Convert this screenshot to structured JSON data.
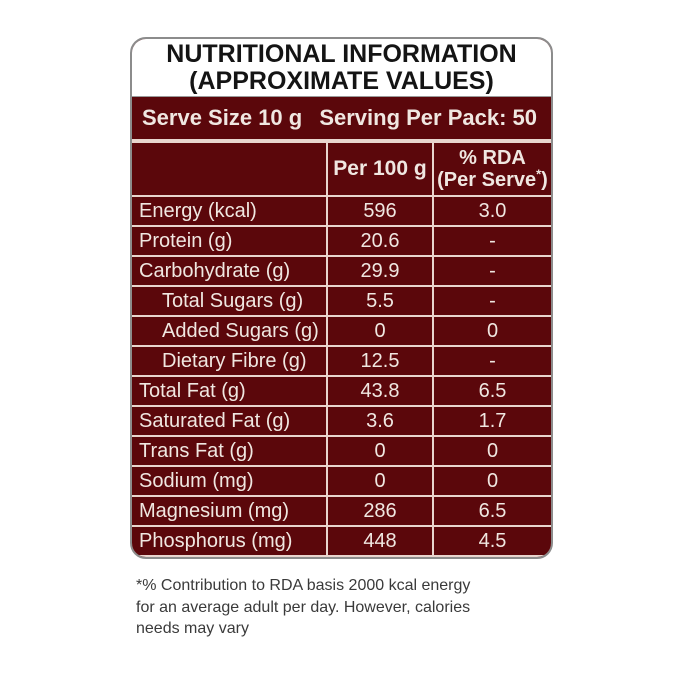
{
  "colors": {
    "panel_maroon": "#5B070B",
    "separator_cream": "#E9D5CE",
    "text_cream": "#F0E7E1",
    "title_black": "#141414",
    "outer_border_gray": "#8C8C8C",
    "footnote_gray": "#3A3A3A"
  },
  "title": {
    "line1": "NUTRITIONAL INFORMATION",
    "line2": "(APPROXIMATE VALUES)"
  },
  "serve": {
    "size": "Serve Size 10 g",
    "per_pack": "Serving Per Pack: 50"
  },
  "table": {
    "header": {
      "col1": "",
      "col2": "Per 100 g",
      "col3_line1": "% RDA",
      "col3_line2_prefix": "(Per Serve",
      "col3_sup": "*",
      "col3_line2_suffix": ")"
    },
    "rows": [
      {
        "label": "Energy (kcal)",
        "per100": "596",
        "rda": "3.0"
      },
      {
        "label": "Protein (g)",
        "per100": "20.6",
        "rda": "-"
      },
      {
        "label": "Carbohydrate (g)",
        "per100": "29.9",
        "rda": "-"
      },
      {
        "label": "Total Sugars (g)",
        "per100": "5.5",
        "rda": "-"
      },
      {
        "label": "Added Sugars (g)",
        "per100": "0",
        "rda": "0"
      },
      {
        "label": "Dietary Fibre (g)",
        "per100": "12.5",
        "rda": "-"
      },
      {
        "label": "Total Fat (g)",
        "per100": "43.8",
        "rda": "6.5"
      },
      {
        "label": "Saturated Fat (g)",
        "per100": "3.6",
        "rda": "1.7"
      },
      {
        "label": "Trans Fat (g)",
        "per100": "0",
        "rda": "0"
      },
      {
        "label": "Sodium (mg)",
        "per100": "0",
        "rda": "0"
      },
      {
        "label": "Magnesium (mg)",
        "per100": "286",
        "rda": "6.5"
      },
      {
        "label": "Phosphorus (mg)",
        "per100": "448",
        "rda": "4.5"
      }
    ]
  },
  "footnote": {
    "lines": [
      "*% Contribution to RDA basis 2000 kcal energy",
      "for an average adult per day. However, calories",
      "needs may vary"
    ]
  }
}
